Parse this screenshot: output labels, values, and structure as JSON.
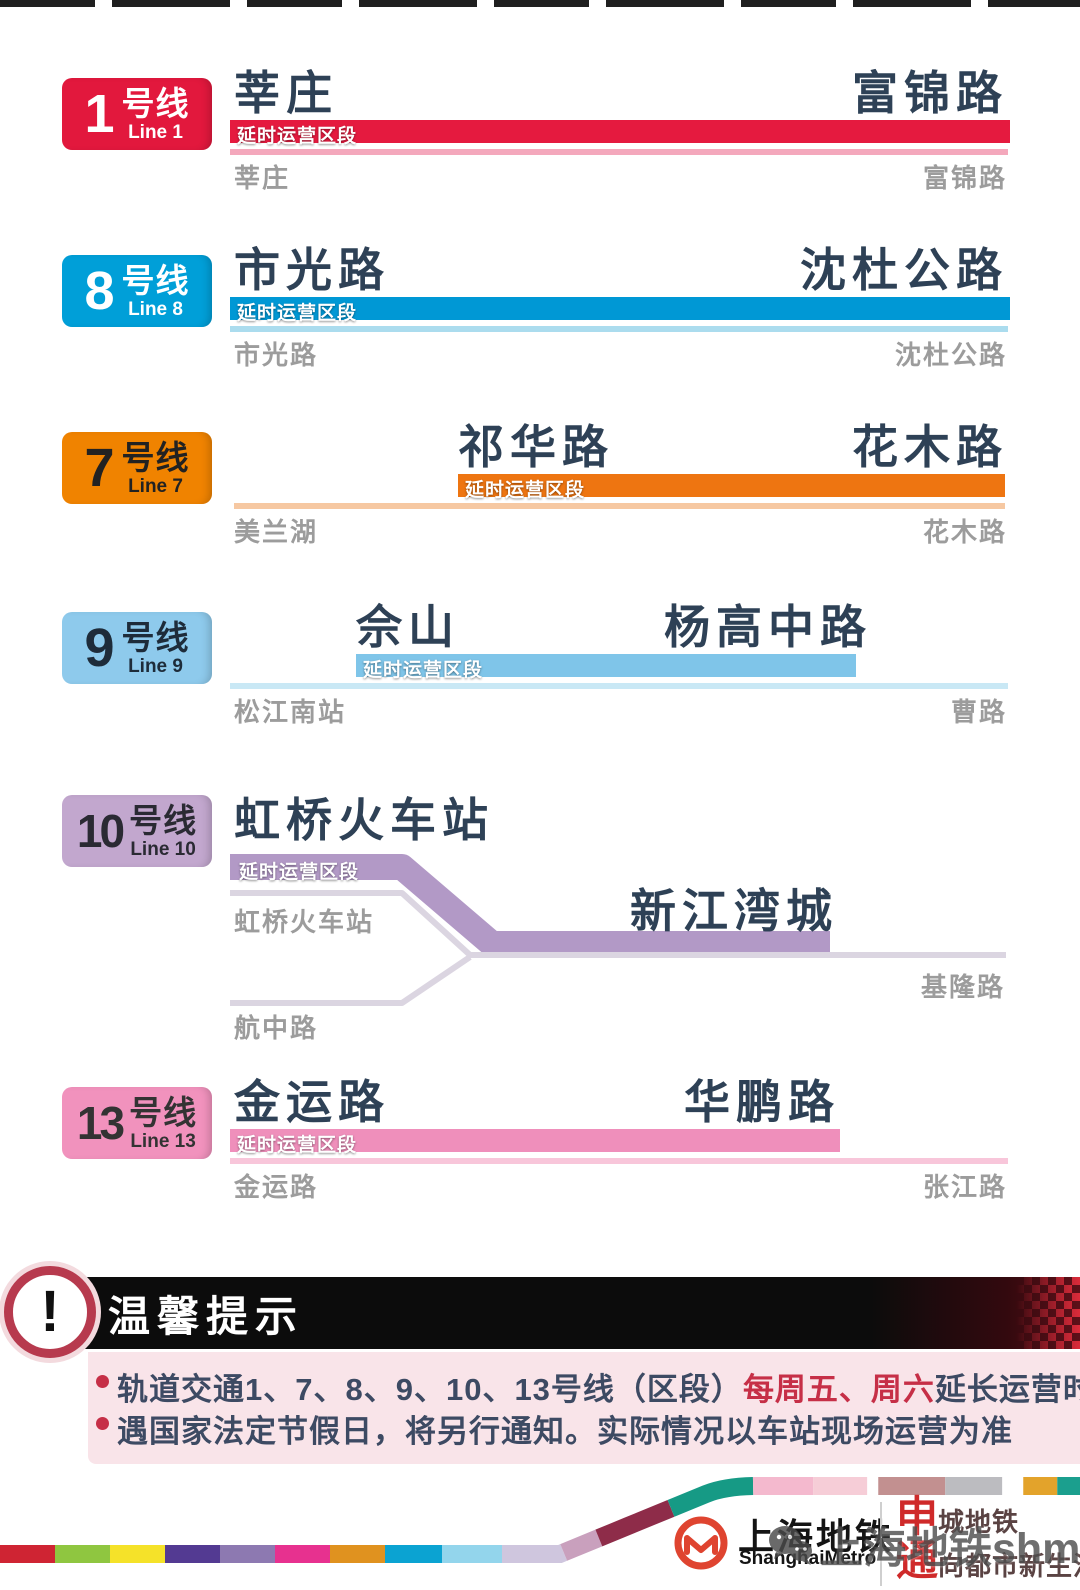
{
  "palette": {
    "ink": "#2e4156",
    "gray-label": "#9c9c9c",
    "l1-badge": "#e2183d",
    "l1-ink": "#ffffff",
    "l1-bar": "#e51a3f",
    "l1-thin": "#f4a8bc",
    "l8-badge": "#009fd8",
    "l8-ink": "#ffffff",
    "l8-bar": "#0098d5",
    "l8-thin": "#abdcee",
    "l7-badge": "#f08300",
    "l7-ink": "#222222",
    "l7-bar": "#ee7511",
    "l7-thin": "#f6c8a2",
    "l9-badge": "#8ecaec",
    "l9-ink": "#1e2c3a",
    "l9-bar": "#7fc5e9",
    "l9-thin": "#c9e8f5",
    "l10-badge": "#c2a7ce",
    "l10-ink": "#2a2a33",
    "l10-bar": "#b299c6",
    "l10-thin": "#dbd5e1",
    "l13-badge": "#f192bd",
    "l13-ink": "#333333",
    "l13-bar": "#ef8fbb",
    "l13-thin": "#f8c6da",
    "notice-ring": "#b73a4e",
    "notice-ink": "#3d4a63",
    "notice-red": "#c62f47",
    "notice-pink": "#f9e4e9",
    "logo-red": "#df4430",
    "slogan-red": "#cf2a2a",
    "slogan-dark": "#5a4343",
    "watermark": "#4f4f4f"
  },
  "lines": [
    {
      "badge_number": "1",
      "badge_cn": "号线",
      "badge_en": "Line 1",
      "tag": "延时运营区段",
      "big_start": "莘庄",
      "big_end": "富锦路",
      "label_start": "莘庄",
      "label_end": "富锦路"
    },
    {
      "badge_number": "8",
      "badge_cn": "号线",
      "badge_en": "Line 8",
      "tag": "延时运营区段",
      "big_start": "市光路",
      "big_end": "沈杜公路",
      "label_start": "市光路",
      "label_end": "沈杜公路"
    },
    {
      "badge_number": "7",
      "badge_cn": "号线",
      "badge_en": "Line 7",
      "tag": "延时运营区段",
      "big_start": "祁华路",
      "big_end": "花木路",
      "label_start": "美兰湖",
      "label_end": "花木路"
    },
    {
      "badge_number": "9",
      "badge_cn": "号线",
      "badge_en": "Line 9",
      "tag": "延时运营区段",
      "big_start": "佘山",
      "big_end": "杨高中路",
      "label_start": "松江南站",
      "label_end": "曹路"
    },
    {
      "badge_number": "10",
      "badge_cn": "号线",
      "badge_en": "Line 10",
      "tag": "延时运营区段",
      "big_start": "虹桥火车站",
      "big_end": "新江湾城",
      "label_start": "虹桥火车站",
      "label_end": "基隆路",
      "label_branch": "航中路"
    },
    {
      "badge_number": "13",
      "badge_cn": "号线",
      "badge_en": "Line 13",
      "tag": "延时运营区段",
      "big_start": "金运路",
      "big_end": "华鹏路",
      "label_start": "金运路",
      "label_end": "张江路"
    }
  ],
  "notice": {
    "icon": "!",
    "title": "温馨提示",
    "bullet1_prefix": "轨道交通1、7、8、9、10、13号线（区段）",
    "bullet1_highlight": "每周五、周六",
    "bullet1_suffix": "延长运营时间。",
    "bullet2": "遇国家法定节假日，将另行通知。实际情况以车站现场运营为准"
  },
  "footer": {
    "brand_cn": "上海地铁",
    "brand_en": "ShanghaiMetro",
    "slogan1_big": "申",
    "slogan1_rest": "城地铁",
    "slogan2_big": "通",
    "slogan2_rest": "向都市新生活",
    "watermark": "上海地铁shmetro",
    "stripe_segments": [
      {
        "color": "#cf2433",
        "len": 55
      },
      {
        "color": "#8fc640",
        "len": 55
      },
      {
        "color": "#f5e229",
        "len": 55
      },
      {
        "color": "#533a92",
        "len": 55
      },
      {
        "color": "#8d79b1",
        "len": 55
      },
      {
        "color": "#e7318f",
        "len": 55
      },
      {
        "color": "#e0921f",
        "len": 55
      },
      {
        "color": "#0ba3d2",
        "len": 57
      },
      {
        "color": "#93d5ec",
        "len": 60
      },
      {
        "color": "#cfc6de",
        "len": 62
      },
      {
        "color": "#c9a0bd",
        "len": 38
      },
      {
        "color": "#8e2c49",
        "len": 78
      },
      {
        "color": "#169a85",
        "len": 86
      },
      {
        "color": "#f4b9ce",
        "len": 60
      },
      {
        "color": "#f6cdd7",
        "len": 54
      },
      {
        "color": "#ffffff",
        "len": 11
      },
      {
        "color": "#c29090",
        "len": 67
      },
      {
        "color": "#bcbcc0",
        "len": 57
      },
      {
        "color": "#ffffff",
        "len": 21
      },
      {
        "color": "#e3a32b",
        "len": 34
      },
      {
        "color": "#1b9f8e",
        "len": 60
      }
    ]
  }
}
